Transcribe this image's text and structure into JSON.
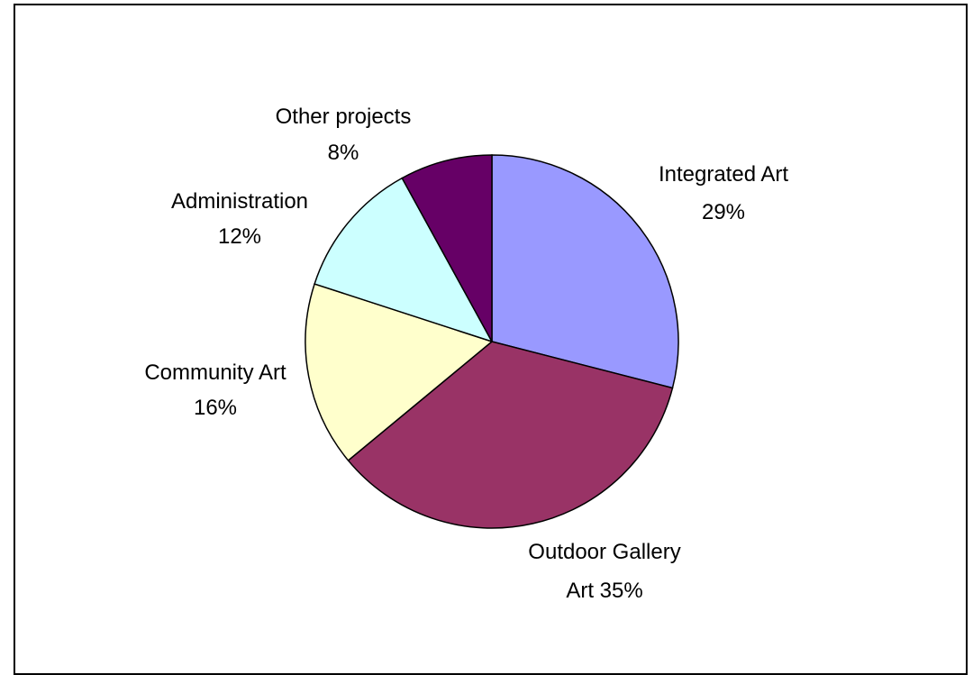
{
  "chart_data": {
    "type": "pie",
    "title": "",
    "slices": [
      {
        "label": "Integrated Art",
        "pct_label": "29%",
        "value": 29,
        "color": "#9999ff"
      },
      {
        "label": "Outdoor Gallery",
        "pct_label": "Art 35%",
        "value": 35,
        "color": "#993366"
      },
      {
        "label": "Community Art",
        "pct_label": "16%",
        "value": 16,
        "color": "#ffffcc"
      },
      {
        "label": "Administration",
        "pct_label": "12%",
        "value": 12,
        "color": "#ccffff"
      },
      {
        "label": "Other projects",
        "pct_label": "8%",
        "value": 8,
        "color": "#660066"
      }
    ],
    "start": "12 o'clock",
    "direction": "clockwise",
    "outline_color": "#000000"
  }
}
